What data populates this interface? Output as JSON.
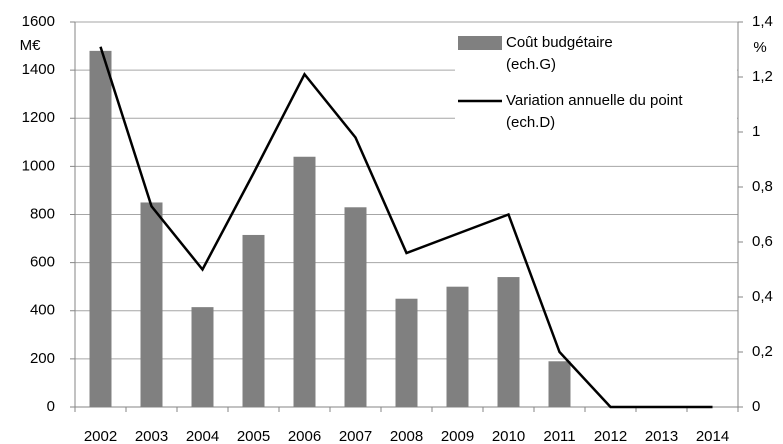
{
  "chart_data": {
    "type": "bar_line",
    "y_label": "M€",
    "y2_label": "%",
    "categories": [
      "2002",
      "2003",
      "2004",
      "2005",
      "2006",
      "2007",
      "2008",
      "2009",
      "2010",
      "2011",
      "2012",
      "2013",
      "2014"
    ],
    "series": [
      {
        "name": "Coût budgétaire (ech.G)",
        "type": "bar",
        "color": "#808080",
        "values": [
          1480,
          850,
          415,
          715,
          1040,
          830,
          450,
          500,
          540,
          190,
          0,
          0,
          0
        ]
      },
      {
        "name": "Variation annuelle du point (ech.D)",
        "type": "line",
        "axis": "y2",
        "color": "#000000",
        "values": [
          1.31,
          0.73,
          0.5,
          0.85,
          1.21,
          0.98,
          0.56,
          0.63,
          0.7,
          0.2,
          0,
          0,
          0
        ]
      }
    ],
    "ylim": [
      0,
      1600
    ],
    "yticks": [
      0,
      200,
      400,
      600,
      800,
      1000,
      1200,
      1400,
      1600
    ],
    "y2lim": [
      0,
      1.4
    ],
    "y2ticks": [
      0,
      {
        "value": 0.2,
        "label": "0,2"
      },
      {
        "value": 0.4,
        "label": "0,4"
      },
      {
        "value": 0.6,
        "label": "0,6"
      },
      {
        "value": 0.8,
        "label": "0,8"
      },
      1,
      {
        "value": 1.2,
        "label": "1,2"
      },
      {
        "value": 1.4,
        "label": "1,4"
      }
    ],
    "grid": true,
    "legend": "upper right"
  }
}
